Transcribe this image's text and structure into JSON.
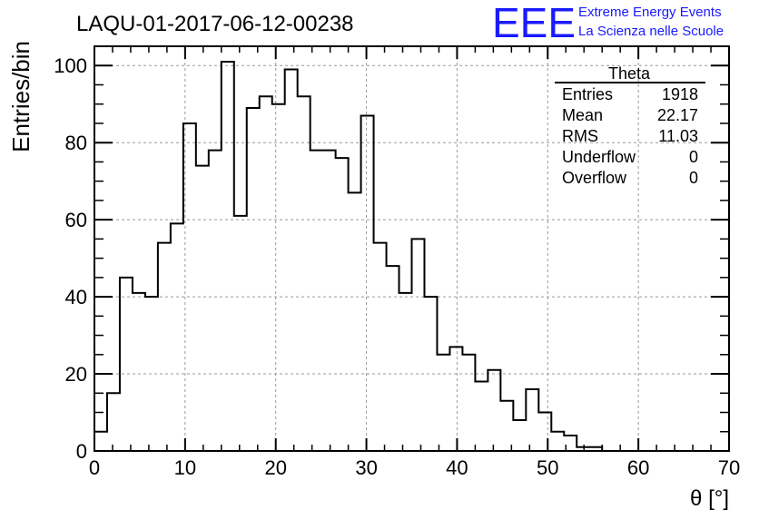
{
  "header": {
    "run_title": "LAQU-01-2017-06-12-00238",
    "logo_text": "EEE",
    "logo_line1": "Extreme Energy Events",
    "logo_line2": "La Scienza nelle Scuole",
    "logo_color": "#1a1aff"
  },
  "stats": {
    "title": "Theta",
    "rows": [
      {
        "label": "Entries",
        "value": "1918"
      },
      {
        "label": "Mean",
        "value": "22.17"
      },
      {
        "label": "RMS",
        "value": "11.03"
      },
      {
        "label": "Underflow",
        "value": "0"
      },
      {
        "label": "Overflow",
        "value": "0"
      }
    ]
  },
  "chart_data": {
    "type": "histogram",
    "title": "LAQU-01-2017-06-12-00238",
    "xlabel": "θ [°]",
    "ylabel": "Entries/bin",
    "xlim": [
      0,
      70
    ],
    "ylim": [
      0,
      105
    ],
    "grid": true,
    "bin_width": 1.4,
    "x_ticks": [
      0,
      10,
      20,
      30,
      40,
      50,
      60,
      70
    ],
    "y_ticks": [
      0,
      20,
      40,
      60,
      80,
      100
    ],
    "bin_edges": [
      0,
      1.4,
      2.8,
      4.2,
      5.6,
      7.0,
      8.4,
      9.8,
      11.2,
      12.6,
      14.0,
      15.4,
      16.8,
      18.2,
      19.6,
      21.0,
      22.4,
      23.8,
      25.2,
      26.6,
      28.0,
      29.4,
      30.8,
      32.2,
      33.6,
      35.0,
      36.4,
      37.8,
      39.2,
      40.6,
      42.0,
      43.4,
      44.8,
      46.2,
      47.6,
      49.0,
      50.4,
      51.8,
      53.2,
      54.6,
      56.0
    ],
    "values": [
      5,
      15,
      45,
      41,
      40,
      54,
      59,
      85,
      74,
      78,
      101,
      61,
      89,
      92,
      90,
      99,
      92,
      78,
      78,
      76,
      67,
      87,
      54,
      48,
      41,
      55,
      40,
      25,
      27,
      25,
      18,
      21,
      13,
      8,
      16,
      10,
      5,
      4,
      1,
      1
    ]
  }
}
